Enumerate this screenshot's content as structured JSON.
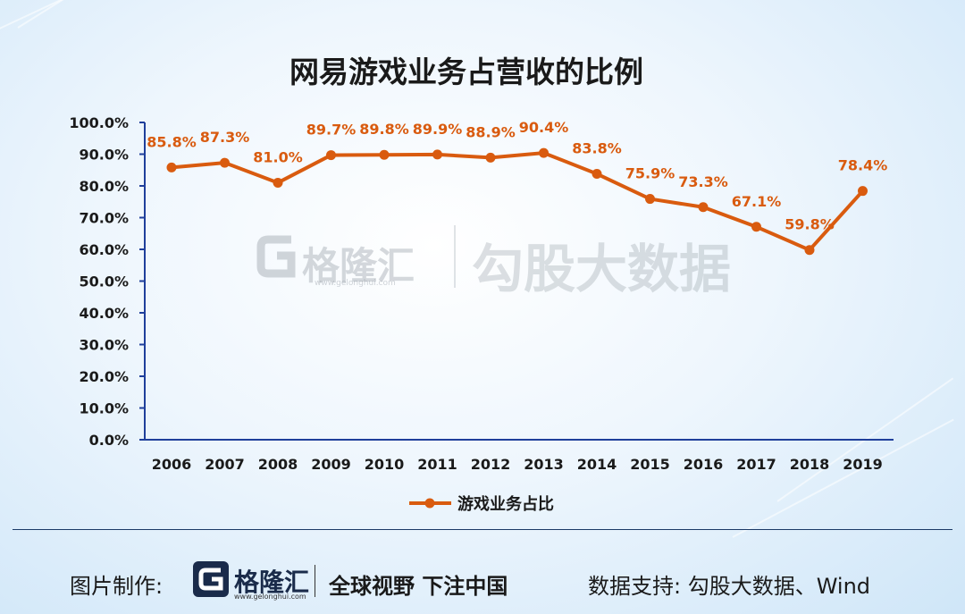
{
  "chart_data": {
    "type": "line",
    "title": "网易游戏业务占营收的比例",
    "categories": [
      "2006",
      "2007",
      "2008",
      "2009",
      "2010",
      "2011",
      "2012",
      "2013",
      "2014",
      "2015",
      "2016",
      "2017",
      "2018",
      "2019"
    ],
    "series": [
      {
        "name": "游戏业务占比",
        "values": [
          85.8,
          87.3,
          81.0,
          89.7,
          89.8,
          89.9,
          88.9,
          90.4,
          83.8,
          75.9,
          73.3,
          67.1,
          59.8,
          78.4
        ],
        "labels": [
          "85.8%",
          "87.3%",
          "81.0%",
          "89.7%",
          "89.8%",
          "89.9%",
          "88.9%",
          "90.4%",
          "83.8%",
          "75.9%",
          "73.3%",
          "67.1%",
          "59.8%",
          "78.4%"
        ],
        "color": "#d95b0f"
      }
    ],
    "yticks": [
      "0.0%",
      "10.0%",
      "20.0%",
      "30.0%",
      "40.0%",
      "50.0%",
      "60.0%",
      "70.0%",
      "80.0%",
      "90.0%",
      "100.0%"
    ],
    "ylim": [
      0,
      100
    ],
    "legend_position": "bottom",
    "grid": false,
    "axis_color": "#1f3f9b"
  },
  "watermark": {
    "brand": "格隆汇",
    "url": "www.gelonghui.com",
    "partner": "勾股大数据"
  },
  "footer": {
    "made_by_label": "图片制作:",
    "brand": "格隆汇",
    "brand_url": "www.gelonghui.com",
    "slogan": "全球视野 下注中国",
    "source_label": "数据支持: 勾股大数据、Wind"
  }
}
